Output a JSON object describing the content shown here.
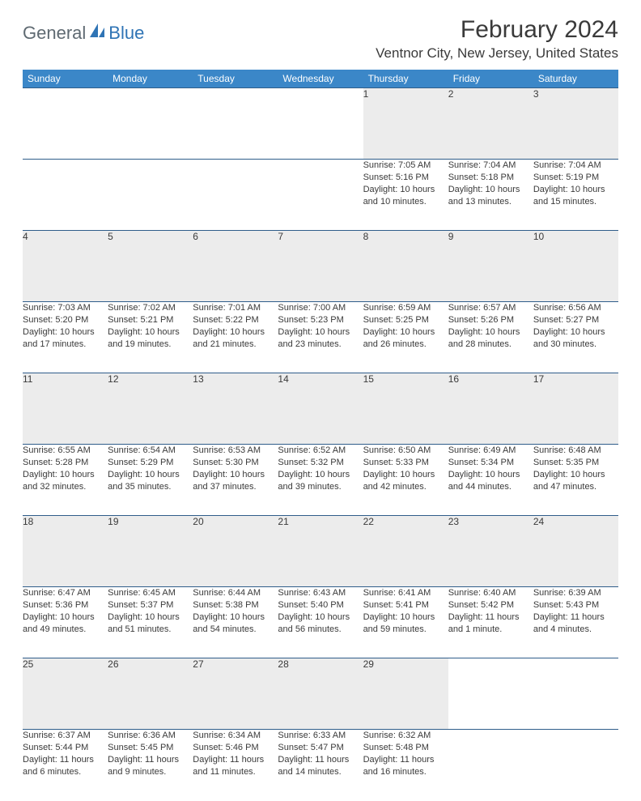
{
  "brand": {
    "part1": "General",
    "part2": "Blue"
  },
  "title": "February 2024",
  "location": "Ventnor City, New Jersey, United States",
  "colors": {
    "header_bg": "#3b87c8",
    "header_text": "#ffffff",
    "daynum_bg": "#ececec",
    "border": "#2f5d8a",
    "text": "#3a3a3a",
    "brand_gray": "#5f6a72",
    "brand_blue": "#2f74b5"
  },
  "weekdays": [
    "Sunday",
    "Monday",
    "Tuesday",
    "Wednesday",
    "Thursday",
    "Friday",
    "Saturday"
  ],
  "weeks": [
    [
      null,
      null,
      null,
      null,
      {
        "d": "1",
        "sr": "7:05 AM",
        "ss": "5:16 PM",
        "dl": "10 hours and 10 minutes."
      },
      {
        "d": "2",
        "sr": "7:04 AM",
        "ss": "5:18 PM",
        "dl": "10 hours and 13 minutes."
      },
      {
        "d": "3",
        "sr": "7:04 AM",
        "ss": "5:19 PM",
        "dl": "10 hours and 15 minutes."
      }
    ],
    [
      {
        "d": "4",
        "sr": "7:03 AM",
        "ss": "5:20 PM",
        "dl": "10 hours and 17 minutes."
      },
      {
        "d": "5",
        "sr": "7:02 AM",
        "ss": "5:21 PM",
        "dl": "10 hours and 19 minutes."
      },
      {
        "d": "6",
        "sr": "7:01 AM",
        "ss": "5:22 PM",
        "dl": "10 hours and 21 minutes."
      },
      {
        "d": "7",
        "sr": "7:00 AM",
        "ss": "5:23 PM",
        "dl": "10 hours and 23 minutes."
      },
      {
        "d": "8",
        "sr": "6:59 AM",
        "ss": "5:25 PM",
        "dl": "10 hours and 26 minutes."
      },
      {
        "d": "9",
        "sr": "6:57 AM",
        "ss": "5:26 PM",
        "dl": "10 hours and 28 minutes."
      },
      {
        "d": "10",
        "sr": "6:56 AM",
        "ss": "5:27 PM",
        "dl": "10 hours and 30 minutes."
      }
    ],
    [
      {
        "d": "11",
        "sr": "6:55 AM",
        "ss": "5:28 PM",
        "dl": "10 hours and 32 minutes."
      },
      {
        "d": "12",
        "sr": "6:54 AM",
        "ss": "5:29 PM",
        "dl": "10 hours and 35 minutes."
      },
      {
        "d": "13",
        "sr": "6:53 AM",
        "ss": "5:30 PM",
        "dl": "10 hours and 37 minutes."
      },
      {
        "d": "14",
        "sr": "6:52 AM",
        "ss": "5:32 PM",
        "dl": "10 hours and 39 minutes."
      },
      {
        "d": "15",
        "sr": "6:50 AM",
        "ss": "5:33 PM",
        "dl": "10 hours and 42 minutes."
      },
      {
        "d": "16",
        "sr": "6:49 AM",
        "ss": "5:34 PM",
        "dl": "10 hours and 44 minutes."
      },
      {
        "d": "17",
        "sr": "6:48 AM",
        "ss": "5:35 PM",
        "dl": "10 hours and 47 minutes."
      }
    ],
    [
      {
        "d": "18",
        "sr": "6:47 AM",
        "ss": "5:36 PM",
        "dl": "10 hours and 49 minutes."
      },
      {
        "d": "19",
        "sr": "6:45 AM",
        "ss": "5:37 PM",
        "dl": "10 hours and 51 minutes."
      },
      {
        "d": "20",
        "sr": "6:44 AM",
        "ss": "5:38 PM",
        "dl": "10 hours and 54 minutes."
      },
      {
        "d": "21",
        "sr": "6:43 AM",
        "ss": "5:40 PM",
        "dl": "10 hours and 56 minutes."
      },
      {
        "d": "22",
        "sr": "6:41 AM",
        "ss": "5:41 PM",
        "dl": "10 hours and 59 minutes."
      },
      {
        "d": "23",
        "sr": "6:40 AM",
        "ss": "5:42 PM",
        "dl": "11 hours and 1 minute."
      },
      {
        "d": "24",
        "sr": "6:39 AM",
        "ss": "5:43 PM",
        "dl": "11 hours and 4 minutes."
      }
    ],
    [
      {
        "d": "25",
        "sr": "6:37 AM",
        "ss": "5:44 PM",
        "dl": "11 hours and 6 minutes."
      },
      {
        "d": "26",
        "sr": "6:36 AM",
        "ss": "5:45 PM",
        "dl": "11 hours and 9 minutes."
      },
      {
        "d": "27",
        "sr": "6:34 AM",
        "ss": "5:46 PM",
        "dl": "11 hours and 11 minutes."
      },
      {
        "d": "28",
        "sr": "6:33 AM",
        "ss": "5:47 PM",
        "dl": "11 hours and 14 minutes."
      },
      {
        "d": "29",
        "sr": "6:32 AM",
        "ss": "5:48 PM",
        "dl": "11 hours and 16 minutes."
      },
      null,
      null
    ]
  ],
  "labels": {
    "sunrise": "Sunrise:",
    "sunset": "Sunset:",
    "daylight": "Daylight:"
  }
}
